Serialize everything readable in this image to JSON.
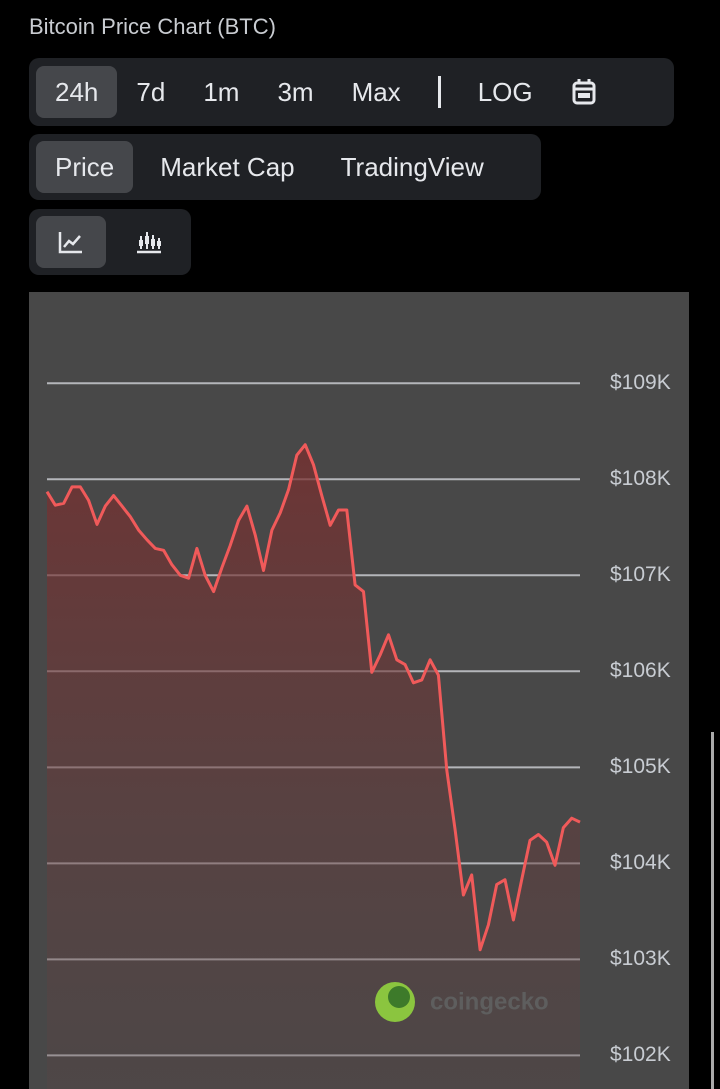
{
  "ui": {
    "title": "Bitcoin Price Chart (BTC)",
    "ranges": [
      "24h",
      "7d",
      "1m",
      "3m",
      "Max"
    ],
    "scale": "LOG",
    "views": [
      "Price",
      "Market Cap",
      "TradingView"
    ],
    "watermark": "coingecko"
  },
  "chart_data": {
    "type": "line",
    "color": "#f05a5a",
    "grid": true,
    "values": [
      107870,
      107730,
      107750,
      107920,
      107920,
      107780,
      107530,
      107720,
      107830,
      107720,
      107610,
      107470,
      107370,
      107280,
      107260,
      107110,
      107000,
      106970,
      107280,
      107000,
      106830,
      107080,
      107310,
      107570,
      107720,
      107420,
      107050,
      107470,
      107650,
      107890,
      108250,
      108360,
      108150,
      107830,
      107520,
      107680,
      107680,
      106900,
      106830,
      105990,
      106170,
      106380,
      106120,
      106070,
      105880,
      105910,
      106120,
      105960,
      104970,
      104350,
      103670,
      103880,
      103100,
      103360,
      103780,
      103830,
      103410,
      103830,
      104240,
      104300,
      104220,
      103980,
      104370,
      104470,
      104430
    ],
    "ylim": [
      101650,
      109950
    ],
    "yticks": [
      {
        "value": 109000,
        "label": "$109K"
      },
      {
        "value": 108000,
        "label": "$108K"
      },
      {
        "value": 107000,
        "label": "$107K"
      },
      {
        "value": 106000,
        "label": "$106K"
      },
      {
        "value": 105000,
        "label": "$105K"
      },
      {
        "value": 104000,
        "label": "$104K"
      },
      {
        "value": 103000,
        "label": "$103K"
      },
      {
        "value": 102000,
        "label": "$102K"
      }
    ]
  }
}
